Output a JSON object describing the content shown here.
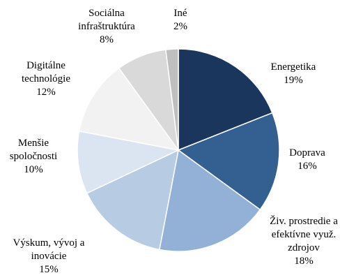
{
  "chart_data": {
    "type": "pie",
    "categories": [
      "Energetika",
      "Doprava",
      "Živ. prostredie a efektívne využ. zdrojov",
      "Výskum, vývoj a inovácie",
      "Menšie spoločnosti",
      "Digitálne technológie",
      "Sociálna infraštruktúra",
      "Iné"
    ],
    "values": [
      19,
      16,
      18,
      15,
      10,
      12,
      8,
      2
    ],
    "value_labels": [
      "19%",
      "16%",
      "18%",
      "15%",
      "10%",
      "12%",
      "8%",
      "2%"
    ],
    "colors": [
      "#1b365d",
      "#335f91",
      "#93b1d6",
      "#b7cbe3",
      "#dbe5f1",
      "#f2f2f2",
      "#d9d9d9",
      "#bfbfbf"
    ]
  }
}
